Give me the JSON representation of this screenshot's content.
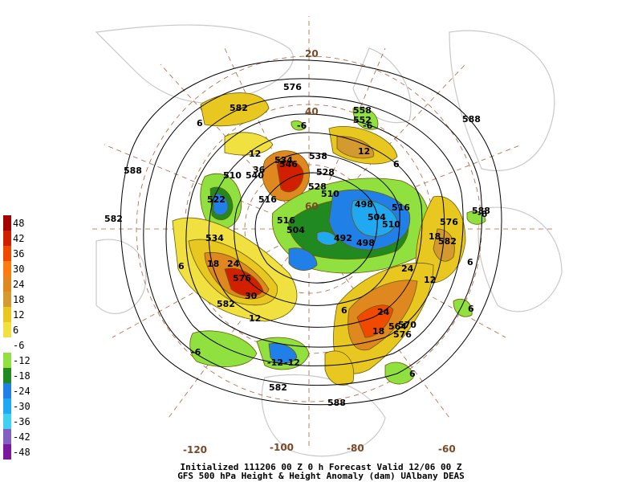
{
  "caption": {
    "line1": "Initialized 111206 00 Z  0 h Forecast Valid 12/06 00 Z",
    "line2": "GFS 500 hPa Height & Height Anomaly (dam)      UAlbany DEAS"
  },
  "legend": {
    "labels": [
      "48",
      "42",
      "36",
      "30",
      "24",
      "18",
      "12",
      "6",
      "-6",
      "-12",
      "-18",
      "-24",
      "-30",
      "-36",
      "-42",
      "-48"
    ],
    "colors": [
      "#a40000",
      "#d02000",
      "#f04a00",
      "#ff7a10",
      "#e08820",
      "#d49a30",
      "#e8c820",
      "#f0e040",
      "#ffffff",
      "#90e040",
      "#208a20",
      "#2080e8",
      "#20a8f0",
      "#40d0f0",
      "#8060c0",
      "#7a18a0"
    ]
  },
  "longitude_labels": [
    "-120",
    "-100",
    "-80",
    "-60"
  ],
  "latitude_labels": [
    "20",
    "40",
    "60"
  ],
  "contour_labels": [
    "576",
    "582",
    "588",
    "588",
    "582",
    "576",
    "552",
    "558",
    "12",
    "6",
    "6",
    "538",
    "528",
    "510",
    "516",
    "516",
    "510",
    "504",
    "498",
    "492",
    "498",
    "504",
    "510",
    "516",
    "522",
    "534",
    "18",
    "24",
    "30",
    "36",
    "576",
    "582",
    "582",
    "588",
    "576",
    "570",
    "564",
    "18",
    "24",
    "6",
    "6",
    "-6",
    "-12",
    "-12",
    "6",
    "12",
    "24",
    "18",
    "12",
    "6",
    "-6",
    "-6",
    "6",
    "12",
    "-6",
    "582",
    "588",
    "534",
    "546",
    "540",
    "528"
  ]
}
